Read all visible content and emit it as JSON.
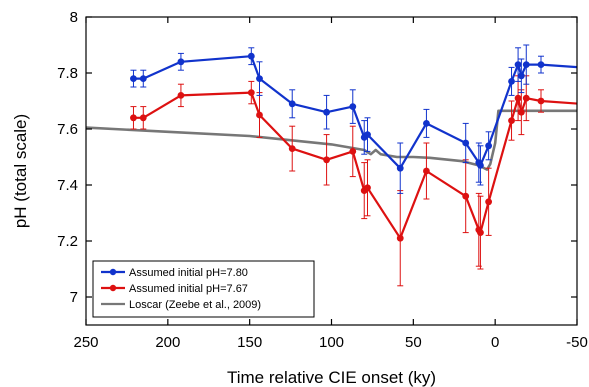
{
  "chart_data": {
    "type": "line",
    "xlabel": "Time relative CIE onset (ky)",
    "ylabel": "pH (total scale)",
    "xlim": [
      250,
      -50
    ],
    "ylim": [
      6.9,
      8.0
    ],
    "x_axis_reversed": true,
    "x_ticks": [
      250,
      200,
      150,
      100,
      50,
      0,
      -50
    ],
    "x_tick_labels": [
      "250",
      "200",
      "150",
      "100",
      "50",
      "0",
      "-50"
    ],
    "y_ticks": [
      7.0,
      7.2,
      7.4,
      7.6,
      7.8,
      8.0
    ],
    "y_tick_labels": [
      "7",
      "7.2",
      "7.4",
      "7.6",
      "7.8",
      "8"
    ],
    "legend_position": "bottom-left",
    "grid": false,
    "series": [
      {
        "name": "Assumed initial pH=7.80",
        "color": "#1133cc",
        "marker": "circle",
        "points": [
          {
            "x": 221,
            "y": 7.78,
            "err": 0.03
          },
          {
            "x": 215,
            "y": 7.78,
            "err": 0.03
          },
          {
            "x": 192,
            "y": 7.84,
            "err": 0.03
          },
          {
            "x": 149,
            "y": 7.86,
            "err": 0.03
          },
          {
            "x": 144,
            "y": 7.78,
            "err": 0.06
          },
          {
            "x": 124,
            "y": 7.69,
            "err": 0.05
          },
          {
            "x": 103,
            "y": 7.66,
            "err": 0.06
          },
          {
            "x": 87,
            "y": 7.68,
            "err": 0.06
          },
          {
            "x": 80,
            "y": 7.57,
            "err": 0.06
          },
          {
            "x": 78,
            "y": 7.58,
            "err": 0.06
          },
          {
            "x": 58,
            "y": 7.46,
            "err": 0.09
          },
          {
            "x": 42,
            "y": 7.62,
            "err": 0.05
          },
          {
            "x": 18,
            "y": 7.55,
            "err": 0.07
          },
          {
            "x": 10,
            "y": 7.48,
            "err": 0.07
          },
          {
            "x": 9,
            "y": 7.47,
            "err": 0.07
          },
          {
            "x": 4,
            "y": 7.54,
            "err": 0.05
          },
          {
            "x": -10,
            "y": 7.77,
            "err": 0.05
          },
          {
            "x": -14,
            "y": 7.83,
            "err": 0.06
          },
          {
            "x": -16,
            "y": 7.79,
            "err": 0.06
          },
          {
            "x": -19,
            "y": 7.83,
            "err": 0.07
          },
          {
            "x": -28,
            "y": 7.83,
            "err": 0.03
          },
          {
            "x": -52,
            "y": 7.82,
            "err": 0.0
          }
        ]
      },
      {
        "name": "Assumed initial pH=7.67",
        "color": "#dd1111",
        "marker": "circle",
        "points": [
          {
            "x": 221,
            "y": 7.64,
            "err": 0.04
          },
          {
            "x": 215,
            "y": 7.64,
            "err": 0.04
          },
          {
            "x": 192,
            "y": 7.72,
            "err": 0.04
          },
          {
            "x": 149,
            "y": 7.73,
            "err": 0.04
          },
          {
            "x": 144,
            "y": 7.65,
            "err": 0.08
          },
          {
            "x": 124,
            "y": 7.53,
            "err": 0.08
          },
          {
            "x": 103,
            "y": 7.49,
            "err": 0.09
          },
          {
            "x": 87,
            "y": 7.52,
            "err": 0.09
          },
          {
            "x": 80,
            "y": 7.38,
            "err": 0.1
          },
          {
            "x": 78,
            "y": 7.39,
            "err": 0.1
          },
          {
            "x": 58,
            "y": 7.21,
            "err": 0.17
          },
          {
            "x": 42,
            "y": 7.45,
            "err": 0.1
          },
          {
            "x": 18,
            "y": 7.36,
            "err": 0.13
          },
          {
            "x": 10,
            "y": 7.24,
            "err": 0.13
          },
          {
            "x": 9,
            "y": 7.23,
            "err": 0.13
          },
          {
            "x": 4,
            "y": 7.34,
            "err": 0.12
          },
          {
            "x": -10,
            "y": 7.63,
            "err": 0.07
          },
          {
            "x": -14,
            "y": 7.71,
            "err": 0.08
          },
          {
            "x": -16,
            "y": 7.66,
            "err": 0.08
          },
          {
            "x": -19,
            "y": 7.71,
            "err": 0.08
          },
          {
            "x": -28,
            "y": 7.7,
            "err": 0.04
          },
          {
            "x": -52,
            "y": 7.69,
            "err": 0.0
          }
        ]
      },
      {
        "name": "Loscar (Zeebe et al., 2009)",
        "color": "#777777",
        "marker": "none",
        "points": [
          {
            "x": 250,
            "y": 7.605
          },
          {
            "x": 200,
            "y": 7.59
          },
          {
            "x": 150,
            "y": 7.575
          },
          {
            "x": 100,
            "y": 7.545
          },
          {
            "x": 80,
            "y": 7.525
          },
          {
            "x": 76,
            "y": 7.51
          },
          {
            "x": 73,
            "y": 7.525
          },
          {
            "x": 70,
            "y": 7.51
          },
          {
            "x": 60,
            "y": 7.5
          },
          {
            "x": 50,
            "y": 7.5
          },
          {
            "x": 40,
            "y": 7.497
          },
          {
            "x": 20,
            "y": 7.485
          },
          {
            "x": 10,
            "y": 7.47
          },
          {
            "x": 5,
            "y": 7.455
          },
          {
            "x": 3,
            "y": 7.475
          },
          {
            "x": 0,
            "y": 7.55
          },
          {
            "x": -2,
            "y": 7.665
          },
          {
            "x": -10,
            "y": 7.665
          },
          {
            "x": -50,
            "y": 7.665
          }
        ]
      }
    ]
  }
}
